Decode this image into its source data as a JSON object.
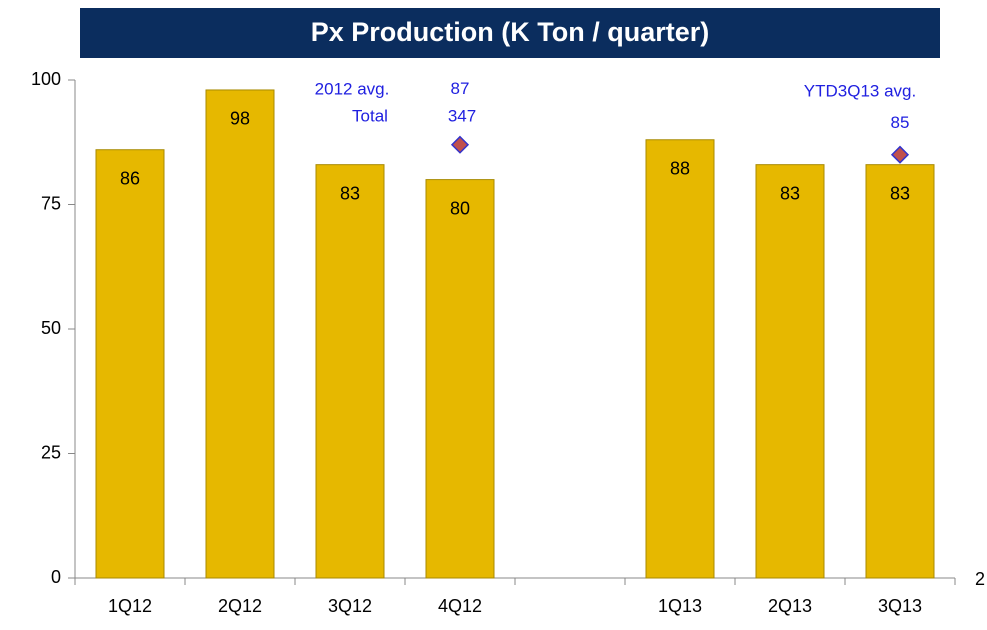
{
  "chart_data": {
    "type": "bar",
    "title": "Px Production (K Ton / quarter)",
    "categories": [
      "1Q12",
      "2Q12",
      "3Q12",
      "4Q12",
      null,
      "1Q13",
      "2Q13",
      "3Q13"
    ],
    "series": [
      {
        "color": "#e6b800",
        "values": [
          86,
          98,
          83,
          80,
          null,
          88,
          83,
          83
        ]
      },
      {
        "type": "scatter",
        "color": "#c0504d",
        "values": [
          null,
          null,
          null,
          87,
          null,
          null,
          null,
          85
        ]
      }
    ],
    "ylim": [
      0,
      100
    ],
    "yticks": [
      0,
      25,
      50,
      75,
      100
    ],
    "annotations": [
      "2012 avg.",
      "Total",
      "347",
      "YTD3Q13 avg."
    ],
    "page_number": "2"
  }
}
